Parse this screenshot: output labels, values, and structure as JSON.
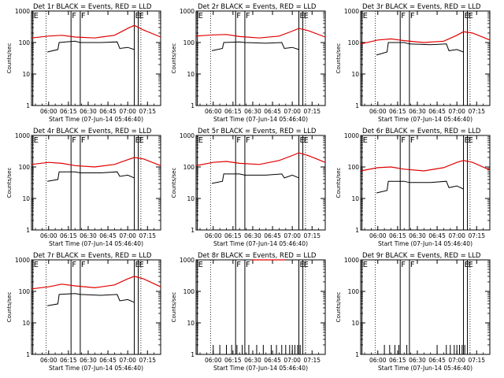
{
  "chart_data": {
    "type": "line",
    "x_axis_label": "Start Time (07-Jun-14 05:46:40)",
    "y_axis_label": "Counts/sec",
    "y_scale": "log",
    "ylim": [
      1,
      1000
    ],
    "xlim": [
      "05:47",
      "07:25"
    ],
    "y_tick_labels": [
      "1",
      "10",
      "100",
      "1000"
    ],
    "x_tick_labels": [
      "06:00",
      "06:15",
      "06:30",
      "06:45",
      "07:00",
      "07:15"
    ],
    "colors": {
      "events": "#000000",
      "lld": "#e00000"
    },
    "event_markers": {
      "E": [
        "05:48",
        "07:05",
        "07:08"
      ],
      "F": [
        "06:17",
        "06:24"
      ]
    },
    "dotted_verticals": [
      "05:58",
      "07:10"
    ],
    "panels": [
      {
        "title": "Det 1r BLACK = Events, RED = LLD",
        "black": [
          [
            "05:59",
            50
          ],
          [
            "06:07",
            60
          ],
          [
            "06:08",
            100
          ],
          [
            "06:20",
            110
          ],
          [
            "06:24",
            100
          ],
          [
            "06:40",
            100
          ],
          [
            "06:52",
            105
          ],
          [
            "06:54",
            65
          ],
          [
            "07:00",
            70
          ],
          [
            "07:05",
            60
          ]
        ],
        "red": [
          [
            "05:47",
            140
          ],
          [
            "06:00",
            160
          ],
          [
            "06:10",
            170
          ],
          [
            "06:20",
            150
          ],
          [
            "06:35",
            140
          ],
          [
            "06:50",
            170
          ],
          [
            "07:00",
            280
          ],
          [
            "07:05",
            350
          ],
          [
            "07:12",
            250
          ],
          [
            "07:25",
            150
          ]
        ]
      },
      {
        "title": "Det 2r BLACK = Events, RED = LLD",
        "black": [
          [
            "05:59",
            55
          ],
          [
            "06:07",
            65
          ],
          [
            "06:08",
            100
          ],
          [
            "06:20",
            105
          ],
          [
            "06:24",
            100
          ],
          [
            "06:40",
            95
          ],
          [
            "06:52",
            100
          ],
          [
            "06:54",
            65
          ],
          [
            "07:00",
            70
          ],
          [
            "07:05",
            60
          ]
        ],
        "red": [
          [
            "05:47",
            160
          ],
          [
            "06:00",
            175
          ],
          [
            "06:10",
            180
          ],
          [
            "06:20",
            155
          ],
          [
            "06:35",
            140
          ],
          [
            "06:50",
            160
          ],
          [
            "07:00",
            230
          ],
          [
            "07:05",
            280
          ],
          [
            "07:12",
            240
          ],
          [
            "07:25",
            150
          ]
        ]
      },
      {
        "title": "Det 3r BLACK = Events, RED = LLD",
        "black": [
          [
            "05:59",
            40
          ],
          [
            "06:07",
            50
          ],
          [
            "06:08",
            100
          ],
          [
            "06:20",
            100
          ],
          [
            "06:24",
            90
          ],
          [
            "06:40",
            85
          ],
          [
            "06:52",
            90
          ],
          [
            "06:54",
            55
          ],
          [
            "07:00",
            60
          ],
          [
            "07:05",
            50
          ]
        ],
        "red": [
          [
            "05:47",
            90
          ],
          [
            "06:00",
            120
          ],
          [
            "06:10",
            130
          ],
          [
            "06:20",
            115
          ],
          [
            "06:35",
            100
          ],
          [
            "06:50",
            110
          ],
          [
            "07:00",
            170
          ],
          [
            "07:05",
            220
          ],
          [
            "07:12",
            200
          ],
          [
            "07:25",
            120
          ]
        ]
      },
      {
        "title": "Det 4r BLACK = Events, RED = LLD",
        "black": [
          [
            "05:59",
            35
          ],
          [
            "06:07",
            40
          ],
          [
            "06:08",
            70
          ],
          [
            "06:20",
            70
          ],
          [
            "06:24",
            65
          ],
          [
            "06:40",
            65
          ],
          [
            "06:52",
            70
          ],
          [
            "06:54",
            50
          ],
          [
            "07:00",
            55
          ],
          [
            "07:05",
            45
          ]
        ],
        "red": [
          [
            "05:47",
            120
          ],
          [
            "06:00",
            140
          ],
          [
            "06:10",
            130
          ],
          [
            "06:20",
            110
          ],
          [
            "06:35",
            100
          ],
          [
            "06:50",
            120
          ],
          [
            "07:00",
            170
          ],
          [
            "07:05",
            200
          ],
          [
            "07:12",
            180
          ],
          [
            "07:25",
            110
          ]
        ]
      },
      {
        "title": "Det 5r BLACK = Events, RED = LLD",
        "black": [
          [
            "05:59",
            30
          ],
          [
            "06:07",
            35
          ],
          [
            "06:08",
            60
          ],
          [
            "06:20",
            60
          ],
          [
            "06:24",
            55
          ],
          [
            "06:40",
            55
          ],
          [
            "06:52",
            60
          ],
          [
            "06:54",
            45
          ],
          [
            "07:00",
            55
          ],
          [
            "07:05",
            45
          ]
        ],
        "red": [
          [
            "05:47",
            110
          ],
          [
            "06:00",
            140
          ],
          [
            "06:10",
            150
          ],
          [
            "06:20",
            130
          ],
          [
            "06:35",
            120
          ],
          [
            "06:50",
            160
          ],
          [
            "07:00",
            230
          ],
          [
            "07:05",
            280
          ],
          [
            "07:12",
            230
          ],
          [
            "07:25",
            140
          ]
        ]
      },
      {
        "title": "Det 6r BLACK = Events, RED = LLD",
        "black": [
          [
            "05:59",
            15
          ],
          [
            "06:07",
            18
          ],
          [
            "06:08",
            35
          ],
          [
            "06:20",
            35
          ],
          [
            "06:24",
            32
          ],
          [
            "06:40",
            32
          ],
          [
            "06:52",
            35
          ],
          [
            "06:54",
            22
          ],
          [
            "07:00",
            25
          ],
          [
            "07:05",
            20
          ]
        ],
        "red": [
          [
            "05:47",
            75
          ],
          [
            "06:00",
            95
          ],
          [
            "06:10",
            100
          ],
          [
            "06:20",
            85
          ],
          [
            "06:35",
            75
          ],
          [
            "06:50",
            95
          ],
          [
            "07:00",
            140
          ],
          [
            "07:05",
            160
          ],
          [
            "07:12",
            140
          ],
          [
            "07:25",
            80
          ]
        ]
      },
      {
        "title": "Det 7r BLACK = Events, RED = LLD",
        "black": [
          [
            "05:59",
            35
          ],
          [
            "06:07",
            40
          ],
          [
            "06:08",
            80
          ],
          [
            "06:20",
            85
          ],
          [
            "06:24",
            80
          ],
          [
            "06:40",
            75
          ],
          [
            "06:52",
            80
          ],
          [
            "06:54",
            50
          ],
          [
            "07:00",
            55
          ],
          [
            "07:05",
            45
          ]
        ],
        "red": [
          [
            "05:47",
            120
          ],
          [
            "06:00",
            140
          ],
          [
            "06:10",
            170
          ],
          [
            "06:20",
            150
          ],
          [
            "06:35",
            130
          ],
          [
            "06:50",
            160
          ],
          [
            "07:00",
            250
          ],
          [
            "07:05",
            300
          ],
          [
            "07:12",
            250
          ],
          [
            "07:25",
            140
          ]
        ]
      },
      {
        "title": "Det 8r BLACK = Events, RED = LLD",
        "black_spikes": [
          "06:00",
          "06:05",
          "06:10",
          "06:14",
          "06:18",
          "06:22",
          "06:27",
          "06:33",
          "06:38",
          "06:44",
          "06:48",
          "06:52",
          "06:55",
          "06:58",
          "07:00",
          "07:02",
          "07:04",
          "07:06"
        ],
        "red": [
          [
            "06:29",
            1000
          ],
          [
            "06:55",
            1000
          ]
        ]
      },
      {
        "title": "Det 9r BLACK = Events, RED = LLD",
        "black_spikes": [
          "06:05",
          "06:09",
          "06:13",
          "06:16",
          "06:22",
          "06:45",
          "06:52",
          "06:55",
          "06:58",
          "07:00",
          "07:02",
          "07:04",
          "07:06"
        ],
        "red": []
      }
    ]
  }
}
